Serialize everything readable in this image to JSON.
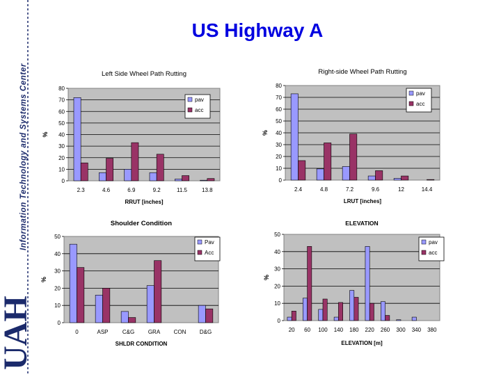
{
  "slide": {
    "title": "US Highway A",
    "sidebar_text": "Information Technology and Systems Center",
    "logo_text": "UAH"
  },
  "colors": {
    "pav": "#9999ff",
    "acc": "#993366",
    "plot_bg": "#c0c0c0",
    "title_blue": "#0000e0",
    "logo": "#1b2a6b"
  },
  "chart_data": [
    {
      "type": "bar",
      "title": "Left Side Wheel Path Rutting",
      "xlabel": "RRUT [inches]",
      "ylabel": "%",
      "ylim": [
        0,
        80
      ],
      "yticks": [
        0,
        10,
        20,
        30,
        40,
        50,
        60,
        70,
        80
      ],
      "categories": [
        "2.3",
        "4.6",
        "6.9",
        "9.2",
        "11.5",
        "13.8"
      ],
      "series": [
        {
          "name": "pav",
          "values": [
            72,
            7,
            10,
            7,
            1.5,
            0.5
          ]
        },
        {
          "name": "acc",
          "values": [
            15.5,
            19.5,
            33,
            23,
            4.5,
            2
          ]
        }
      ],
      "legend": "top-right",
      "grid": true
    },
    {
      "type": "bar",
      "title": "Right-side Wheel Path Rutting",
      "xlabel": "LRUT [inches]",
      "ylabel": "%",
      "ylim": [
        0,
        80
      ],
      "yticks": [
        0,
        10,
        20,
        30,
        40,
        50,
        60,
        70,
        80
      ],
      "categories": [
        "2.4",
        "4.8",
        "7.2",
        "9.6",
        "12",
        "14.4"
      ],
      "series": [
        {
          "name": "pav",
          "values": [
            73,
            9.5,
            11.5,
            3.5,
            1.5,
            0
          ]
        },
        {
          "name": "acc",
          "values": [
            16.5,
            31.5,
            39,
            8,
            3.5,
            0.5
          ]
        }
      ],
      "legend": "top-right",
      "grid": true
    },
    {
      "type": "bar",
      "title": "Shoulder Condition",
      "xlabel": "SHLDR CONDITION",
      "ylabel": "%",
      "ylim": [
        0,
        50
      ],
      "yticks": [
        0,
        10,
        20,
        30,
        40,
        50
      ],
      "categories": [
        "0",
        "ASP",
        "C&G",
        "GRA",
        "CON",
        "D&G"
      ],
      "series": [
        {
          "name": "Pav",
          "values": [
            45.5,
            16,
            6.5,
            21.5,
            0,
            10
          ]
        },
        {
          "name": "Acc",
          "values": [
            32,
            20,
            3,
            36,
            0,
            8
          ]
        }
      ],
      "legend": "top-right",
      "grid": true
    },
    {
      "type": "bar",
      "title": "ELEVATION",
      "xlabel": "ELEVATION [m]",
      "ylabel": "%",
      "ylim": [
        0,
        50
      ],
      "yticks": [
        0,
        10,
        20,
        30,
        40,
        50
      ],
      "categories": [
        "20",
        "60",
        "100",
        "140",
        "180",
        "220",
        "260",
        "300",
        "340",
        "380"
      ],
      "series": [
        {
          "name": "pav",
          "values": [
            2,
            13,
            6.5,
            2,
            17.5,
            43,
            11,
            0.5,
            2,
            0
          ]
        },
        {
          "name": "acc",
          "values": [
            5.5,
            43,
            12.5,
            10.5,
            13.5,
            10,
            3,
            0,
            0,
            0
          ]
        }
      ],
      "legend": "top-right",
      "grid": true
    }
  ]
}
